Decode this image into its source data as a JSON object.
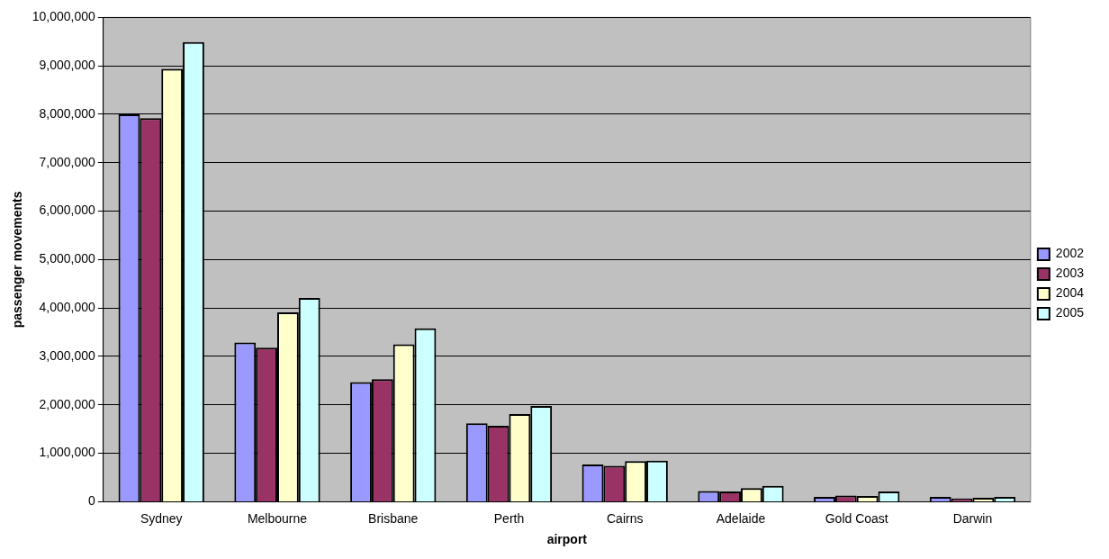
{
  "chart_data": {
    "type": "bar",
    "xlabel": "airport",
    "ylabel": "passenger movements",
    "categories": [
      "Sydney",
      "Melbourne",
      "Brisbane",
      "Perth",
      "Cairns",
      "Adelaide",
      "Gold Coast",
      "Darwin"
    ],
    "series": [
      {
        "name": "2002",
        "color": "#9999ff",
        "values": [
          8000000,
          3290000,
          2470000,
          1620000,
          770000,
          220000,
          100000,
          100000
        ]
      },
      {
        "name": "2003",
        "color": "#993366",
        "values": [
          7920000,
          3180000,
          2530000,
          1570000,
          740000,
          210000,
          130000,
          70000
        ]
      },
      {
        "name": "2004",
        "color": "#ffffcc",
        "values": [
          8940000,
          3910000,
          3250000,
          1810000,
          840000,
          280000,
          120000,
          80000
        ]
      },
      {
        "name": "2005",
        "color": "#ccffff",
        "values": [
          9490000,
          4210000,
          3580000,
          1980000,
          850000,
          330000,
          210000,
          100000
        ]
      }
    ],
    "ylim": [
      0,
      10000000
    ],
    "yticks": [
      0,
      {
        "value": 1000000,
        "label": "1,000,000"
      },
      {
        "value": 2000000,
        "label": "2,000,000"
      },
      {
        "value": 3000000,
        "label": "3,000,000"
      },
      {
        "value": 4000000,
        "label": "4,000,000"
      },
      {
        "value": 5000000,
        "label": "5,000,000"
      },
      {
        "value": 6000000,
        "label": "6,000,000"
      },
      {
        "value": 7000000,
        "label": "7,000,000"
      },
      {
        "value": 8000000,
        "label": "8,000,000"
      },
      {
        "value": 9000000,
        "label": "9,000,000"
      },
      {
        "value": 10000000,
        "label": "10,000,000"
      }
    ],
    "grid": "y",
    "legend": "right"
  }
}
